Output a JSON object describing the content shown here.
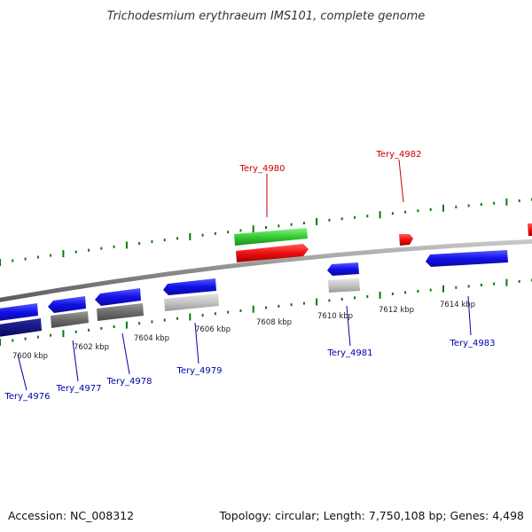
{
  "title": "Trichodesmium erythraeum IMS101, complete genome",
  "footer": {
    "accession": "Accession: NC_008312",
    "summary": "Topology: circular; Length: 7,750,108 bp; Genes: 4,498"
  },
  "colors": {
    "forward_label": "#cc0000",
    "reverse_label": "#0000aa",
    "ticks": "#0a7a0a",
    "backbone": "#888888"
  },
  "scale_labels": [
    "7600 kbp",
    "7602 kbp",
    "7604 kbp",
    "7606 kbp",
    "7608 kbp",
    "7610 kbp",
    "7612 kbp",
    "7614 kbp"
  ],
  "gene_labels": {
    "forward": [
      "Tery_4980",
      "Tery_4982"
    ],
    "reverse": [
      "Tery_4976",
      "Tery_4977",
      "Tery_4978",
      "Tery_4979",
      "Tery_4981",
      "Tery_4983"
    ]
  }
}
